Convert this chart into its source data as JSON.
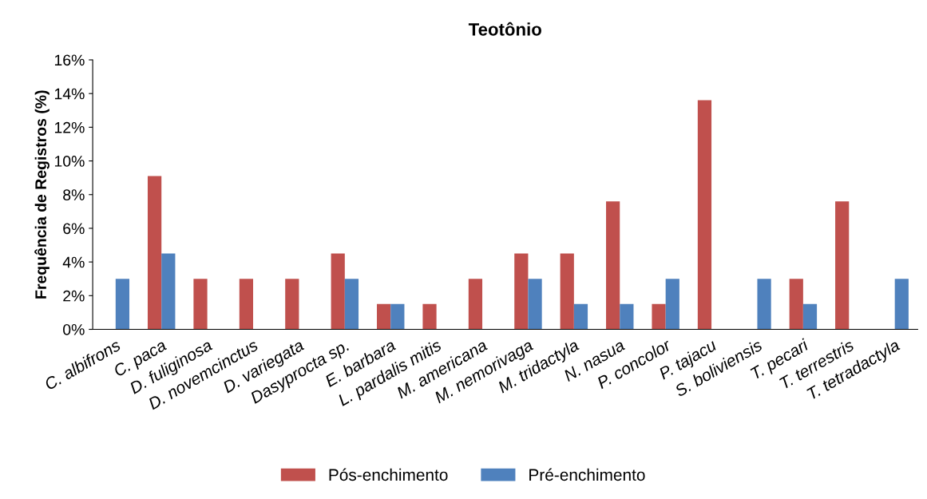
{
  "chart_data": {
    "type": "bar",
    "title": "Teotônio",
    "ylabel": "Frequência de Registros (%)",
    "categories": [
      "C. albifrons",
      "C. paca",
      "D. fuliginosa",
      "D. novemcinctus",
      "D. variegata",
      "Dasyprocta sp.",
      "E. barbara",
      "L. pardalis mitis",
      "M. americana",
      "M. nemorivaga",
      "M. tridactyla",
      "N. nasua",
      "P. concolor",
      "P. tajacu",
      "S. boliviensis",
      "T. pecari",
      "T. terrestris",
      "T. tetradactyla"
    ],
    "series": [
      {
        "name": "Pós-enchimento",
        "color": "#c0504d",
        "values": [
          0,
          9.1,
          3.0,
          3.0,
          3.0,
          4.5,
          1.5,
          1.5,
          3.0,
          4.5,
          4.5,
          7.6,
          1.5,
          13.6,
          0,
          3.0,
          7.6,
          0
        ]
      },
      {
        "name": "Pré-enchimento",
        "color": "#4f81bd",
        "values": [
          3.0,
          4.5,
          0,
          0,
          0,
          3.0,
          1.5,
          0,
          0,
          3.0,
          1.5,
          1.5,
          3.0,
          0,
          3.0,
          1.5,
          0,
          3.0
        ]
      }
    ],
    "ylim": [
      0,
      16
    ],
    "yticks": [
      {
        "value": 0,
        "label": "0%"
      },
      {
        "value": 2,
        "label": "2%"
      },
      {
        "value": 4,
        "label": "4%"
      },
      {
        "value": 6,
        "label": "6%"
      },
      {
        "value": 8,
        "label": "8%"
      },
      {
        "value": 10,
        "label": "10%"
      },
      {
        "value": 12,
        "label": "12%"
      },
      {
        "value": 14,
        "label": "14%"
      },
      {
        "value": 16,
        "label": "16%"
      }
    ],
    "grid": false,
    "legend": "bottom"
  }
}
